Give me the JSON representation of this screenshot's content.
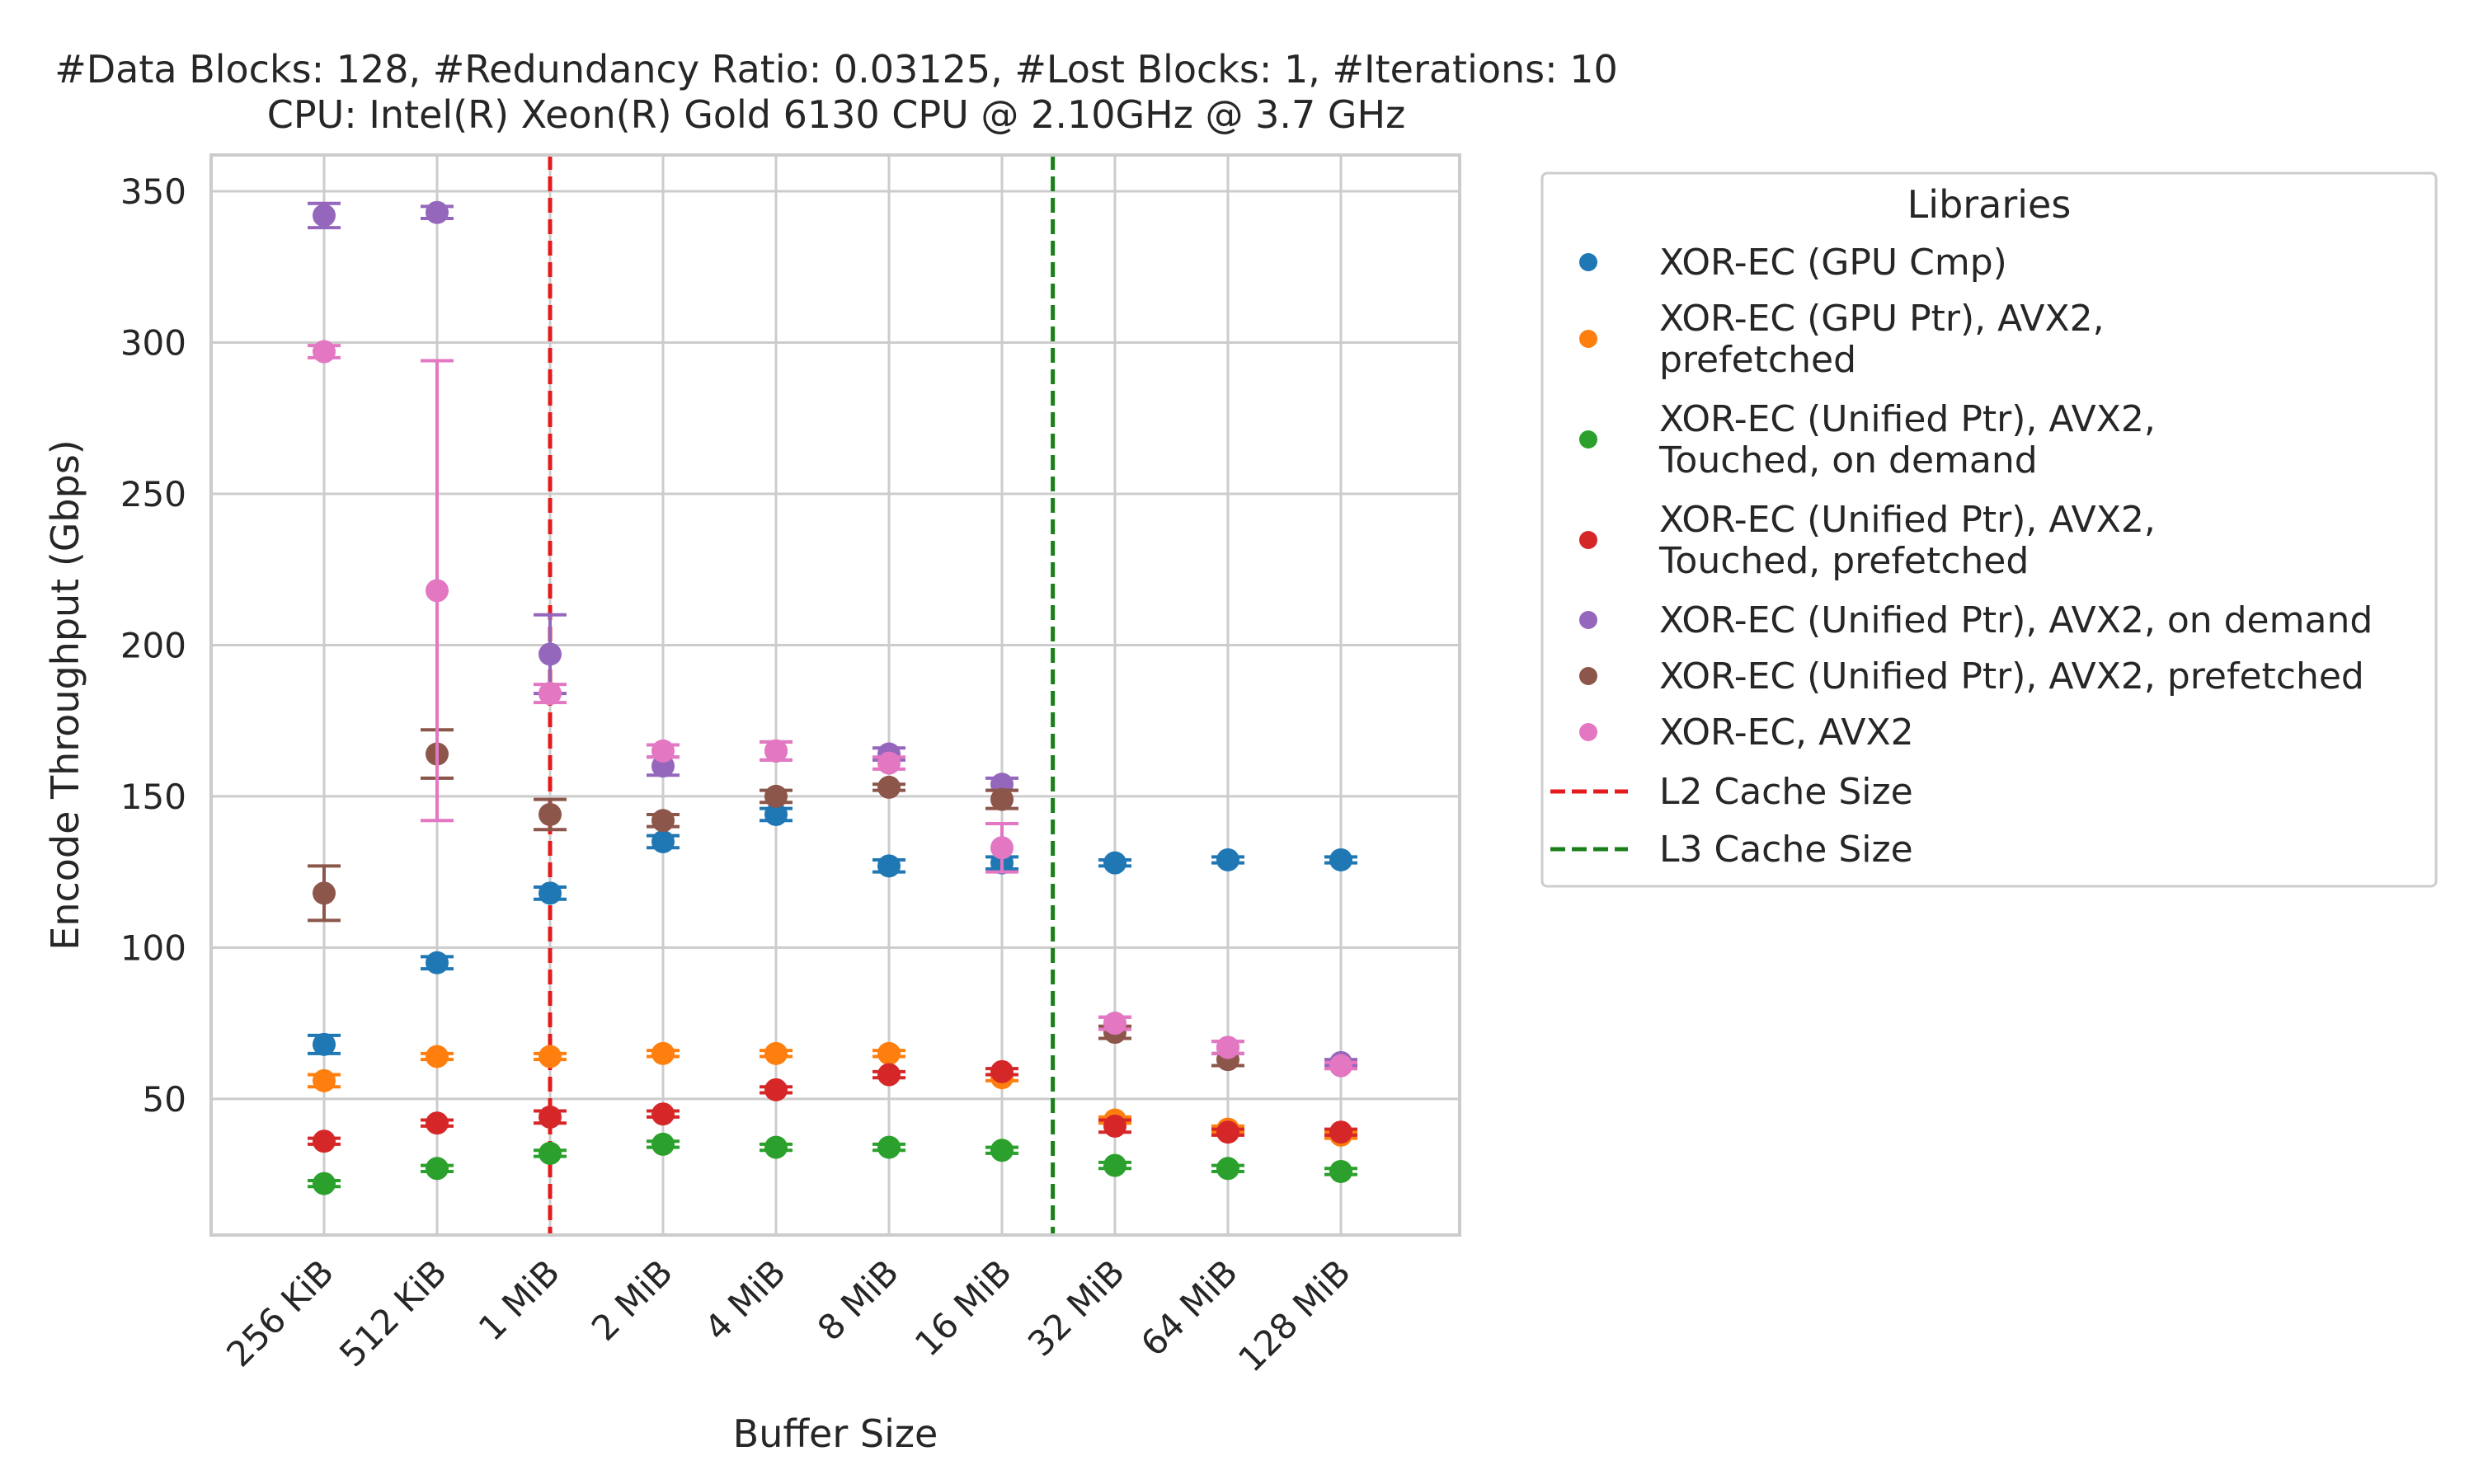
{
  "chart_data": {
    "type": "scatter",
    "title_lines": [
      "#Data Blocks: 128, #Redundancy Ratio: 0.03125, #Lost Blocks: 1, #Iterations: 10",
      "CPU: Intel(R) Xeon(R) Gold 6130 CPU @ 2.10GHz @ 3.7 GHz"
    ],
    "xlabel": "Buffer Size",
    "ylabel": "Encode Throughput (Gbps)",
    "categories": [
      "256 KiB",
      "512 KiB",
      "1 MiB",
      "2 MiB",
      "4 MiB",
      "8 MiB",
      "16 MiB",
      "32 MiB",
      "64 MiB",
      "128 MiB"
    ],
    "ylim": [
      5,
      362
    ],
    "yticks": [
      50,
      100,
      150,
      200,
      250,
      300,
      350
    ],
    "grid": true,
    "legend": {
      "title": "Libraries",
      "placement": "outside-right",
      "line_entries": [
        {
          "label": "L2 Cache Size",
          "color": "#e41a1c"
        },
        {
          "label": "L3 Cache Size",
          "color": "#1a7f1a"
        }
      ]
    },
    "vlines": [
      {
        "label": "L2 Cache Size",
        "x": "1 MiB",
        "color": "#e41a1c"
      },
      {
        "label": "L3 Cache Size",
        "x_between": [
          "16 MiB",
          "32 MiB"
        ],
        "color": "#1a7f1a"
      }
    ],
    "series": [
      {
        "name": "XOR-EC (GPU Cmp)",
        "label_lines": [
          "XOR-EC (GPU Cmp)"
        ],
        "color": "#1f77b4",
        "values": [
          68,
          95,
          118,
          135,
          144,
          127,
          128,
          128,
          129,
          129
        ],
        "errors": [
          3,
          2,
          2,
          2,
          2,
          2,
          2,
          1,
          1,
          1
        ]
      },
      {
        "name": "XOR-EC (GPU Ptr), AVX2, prefetched",
        "label_lines": [
          "XOR-EC (GPU Ptr), AVX2,",
          "prefetched"
        ],
        "color": "#ff7f0e",
        "values": [
          56,
          64,
          64,
          65,
          65,
          65,
          57,
          43,
          40,
          38
        ],
        "errors": [
          2,
          1,
          1,
          1,
          1,
          1,
          1,
          1,
          1,
          1
        ]
      },
      {
        "name": "XOR-EC (Unified Ptr), AVX2, Touched, on demand",
        "label_lines": [
          "XOR-EC (Unified Ptr), AVX2,",
          "Touched, on demand"
        ],
        "color": "#2ca02c",
        "values": [
          22,
          27,
          32,
          35,
          34,
          34,
          33,
          28,
          27,
          26
        ],
        "errors": [
          1,
          1,
          1,
          1,
          1,
          1,
          1,
          1,
          1,
          1
        ]
      },
      {
        "name": "XOR-EC (Unified Ptr), AVX2, Touched, prefetched",
        "label_lines": [
          "XOR-EC (Unified Ptr), AVX2,",
          "Touched, prefetched"
        ],
        "color": "#d62728",
        "values": [
          36,
          42,
          44,
          45,
          53,
          58,
          59,
          41,
          39,
          39
        ],
        "errors": [
          1,
          1,
          2,
          1,
          1,
          1,
          1,
          2,
          1,
          1
        ]
      },
      {
        "name": "XOR-EC (Unified Ptr), AVX2, on demand",
        "label_lines": [
          "XOR-EC (Unified Ptr), AVX2, on demand"
        ],
        "color": "#9467bd",
        "values": [
          342,
          343,
          197,
          160,
          165,
          164,
          154,
          75,
          67,
          62
        ],
        "errors": [
          4,
          2,
          13,
          3,
          3,
          2,
          2,
          2,
          2,
          1
        ]
      },
      {
        "name": "XOR-EC (Unified Ptr), AVX2, prefetched",
        "label_lines": [
          "XOR-EC (Unified Ptr), AVX2, prefetched"
        ],
        "color": "#8c564b",
        "values": [
          118,
          164,
          144,
          142,
          150,
          153,
          149,
          72,
          63,
          61
        ],
        "errors": [
          9,
          8,
          5,
          2,
          2,
          1,
          3,
          2,
          2,
          1
        ]
      },
      {
        "name": "XOR-EC, AVX2",
        "label_lines": [
          "XOR-EC, AVX2"
        ],
        "color": "#e377c2",
        "values": [
          297,
          218,
          184,
          165,
          165,
          161,
          133,
          75,
          67,
          61
        ],
        "errors": [
          2,
          76,
          3,
          2,
          3,
          2,
          8,
          2,
          2,
          1
        ]
      }
    ]
  }
}
